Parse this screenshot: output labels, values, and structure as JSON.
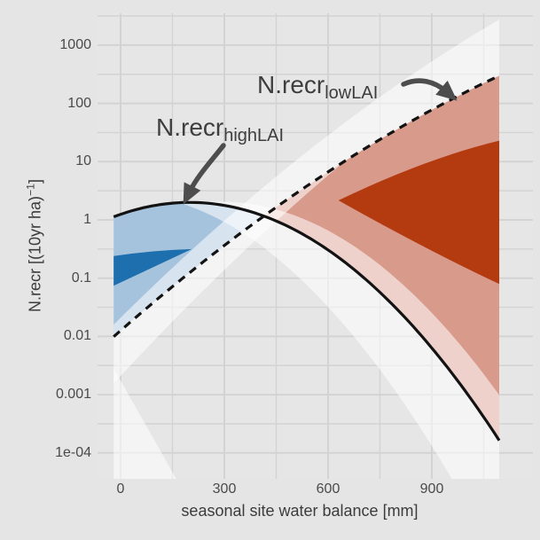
{
  "figure": {
    "x_axis": {
      "title": "seasonal site water balance [mm]",
      "tick_values": [
        0,
        300,
        600,
        900
      ],
      "tick_labels": [
        "0",
        "300",
        "600",
        "900"
      ],
      "minor_tick_values": [
        150,
        450,
        750,
        1050
      ]
    },
    "y_axis": {
      "title_pre": "N.recr [(10yr ha)",
      "title_sup": "−1",
      "title_post": "]",
      "scale": "log10",
      "tick_values": [
        1000,
        100,
        10,
        1,
        0.1,
        0.01,
        0.001,
        0.0001
      ],
      "tick_labels": [
        "1000",
        "100",
        "10",
        "1",
        "0.1",
        "0.01",
        "0.001",
        "1e-04"
      ]
    },
    "annotations": [
      {
        "id": "highLAI",
        "text_main": "N.recr",
        "text_sub": "highLAI",
        "points_to": "solid curve"
      },
      {
        "id": "lowLAI",
        "text_main": "N.recr",
        "text_sub": "lowLAI",
        "points_to": "dashed curve"
      }
    ]
  },
  "chart_data": {
    "type": "line",
    "xlabel": "seasonal site water balance [mm]",
    "ylabel": "N.recr [(10yr ha)^-1]",
    "x_range_mm": [
      -20,
      1095
    ],
    "y_ticks": [
      "1000",
      "100",
      "10",
      "1",
      "0.1",
      "0.01",
      "0.001",
      "1e-04"
    ],
    "y_range_log10": [
      -4.35,
      3.5
    ],
    "grid": true,
    "legend": "annotated directly on plot with arrows",
    "series": [
      {
        "name": "N.recr_highLAI",
        "line_style": "solid",
        "model_log10": {
          "form": "c0 + c2*(x - xpeak)^2",
          "c0": 0.3,
          "xpeak": 200,
          "c2": -5.1e-06
        },
        "x": [
          0,
          100,
          200,
          300,
          400,
          500,
          600,
          700,
          800,
          900,
          1000,
          1100
        ],
        "y": [
          1.25,
          1.77,
          2.0,
          1.77,
          1.25,
          0.69,
          0.3,
          0.106,
          0.029,
          0.0063,
          0.0011,
          0.00015
        ]
      },
      {
        "name": "N.recr_lowLAI",
        "line_style": "dashed",
        "model_log10": {
          "form": "a + b*x + c*x^2",
          "a": -1.9,
          "b": 0.0052,
          "c": -1.1e-06
        },
        "x": [
          0,
          100,
          200,
          300,
          400,
          500,
          600,
          700,
          800,
          900,
          1000,
          1100
        ],
        "y": [
          0.013,
          0.041,
          0.125,
          0.36,
          1.01,
          2.66,
          6.7,
          15.9,
          36,
          77,
          158,
          308
        ]
      }
    ],
    "curve_crossing_approx": {
      "x_mm": 415,
      "y": 1.15
    },
    "bands": {
      "between_curves_fill_left_blue": "#a6c3dd",
      "between_curves_fill_right_red": "#d89a8b",
      "core_region_dark_blue": "#1d6fae",
      "core_region_dark_red": "#b43a10",
      "pale_overlap_blue": "#d5e3f0",
      "pale_overlap_pink": "#eed5cd",
      "confidence_fan_fill": "rgba(255,255,255,0.55)"
    }
  },
  "colors": {
    "outer_bg": "#e5e5e5",
    "panel_bg": "#e6e6e6",
    "grid": "#d3d3d3",
    "curve": "#131313",
    "arrow": "#4d4d4d",
    "tick_text": "#4a4a4a",
    "title_text": "#3c3c3c"
  }
}
